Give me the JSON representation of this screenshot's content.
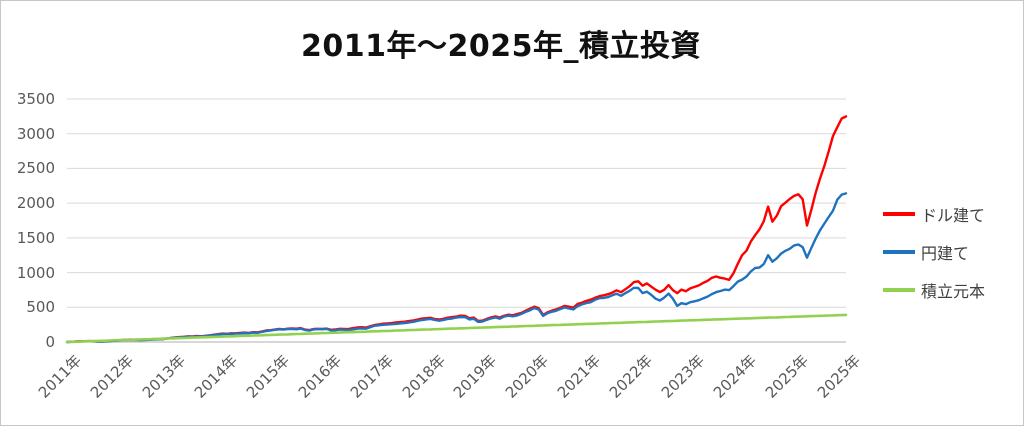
{
  "title": "2011年〜2025年_積立投資",
  "colors": {
    "dollar_series": "#FF0000",
    "yen_series": "#1F72BE",
    "principal_series": "#92D050",
    "gridline": "#D9D9D9",
    "axis_line": "#BFBFBF",
    "axis_text": "#595959",
    "title_text": "#111111"
  },
  "legend": [
    {
      "label": "ドル建て",
      "color": "#FF0000"
    },
    {
      "label": "円建て",
      "color": "#1F72BE"
    },
    {
      "label": "積立元本",
      "color": "#92D050"
    }
  ],
  "chart_data": {
    "type": "line",
    "title": "2011年〜2025年_積立投資",
    "xlabel": "",
    "ylabel": "",
    "ylim": [
      0,
      3500
    ],
    "grid": true,
    "legend_position": "right",
    "y_ticks": [
      0,
      500,
      1000,
      1500,
      2000,
      2500,
      3000,
      3500
    ],
    "x_tick_labels": [
      "2011年",
      "2012年",
      "2013年",
      "2014年",
      "2015年",
      "2016年",
      "2017年",
      "2018年",
      "2019年",
      "2020年",
      "2021年",
      "2022年",
      "2023年",
      "2024年",
      "2025年",
      "2025年"
    ],
    "points_per_x_tick": 12,
    "series": [
      {
        "name": "ドル建て",
        "color": "#FF0000",
        "values": [
          0,
          4,
          7,
          10,
          12,
          13,
          12,
          8,
          7,
          11,
          14,
          19,
          25,
          29,
          33,
          34,
          32,
          29,
          33,
          37,
          41,
          42,
          41,
          50,
          60,
          66,
          72,
          76,
          82,
          79,
          86,
          83,
          90,
          97,
          105,
          112,
          120,
          118,
          124,
          126,
          130,
          136,
          132,
          140,
          138,
          150,
          165,
          172,
          180,
          188,
          184,
          190,
          195,
          192,
          198,
          178,
          172,
          188,
          192,
          188,
          195,
          175,
          182,
          192,
          190,
          186,
          200,
          210,
          214,
          208,
          225,
          245,
          255,
          265,
          268,
          274,
          280,
          288,
          295,
          300,
          310,
          325,
          338,
          345,
          350,
          330,
          325,
          335,
          348,
          356,
          368,
          380,
          375,
          340,
          350,
          300,
          310,
          335,
          355,
          370,
          350,
          380,
          395,
          385,
          400,
          420,
          450,
          480,
          505,
          490,
          390,
          430,
          455,
          470,
          495,
          520,
          505,
          495,
          545,
          570,
          590,
          605,
          640,
          665,
          670,
          690,
          715,
          740,
          720,
          760,
          800,
          860,
          880,
          810,
          840,
          800,
          750,
          715,
          755,
          820,
          745,
          700,
          750,
          735,
          770,
          790,
          810,
          850,
          880,
          920,
          950,
          930,
          910,
          895,
          985,
          1120,
          1250,
          1320,
          1450,
          1530,
          1620,
          1750,
          1950,
          1740,
          1820,
          1950,
          2000,
          2060,
          2100,
          2140,
          2050,
          1670,
          1900,
          2150,
          2350,
          2550,
          2750,
          2950,
          3100,
          3200,
          3250
        ]
      },
      {
        "name": "円建て",
        "color": "#1F72BE",
        "values": [
          0,
          4,
          6,
          9,
          11,
          12,
          10,
          7,
          6,
          9,
          12,
          17,
          22,
          26,
          29,
          30,
          28,
          26,
          29,
          33,
          36,
          38,
          39,
          48,
          55,
          62,
          68,
          72,
          78,
          75,
          82,
          79,
          85,
          92,
          100,
          108,
          115,
          112,
          118,
          120,
          124,
          130,
          126,
          134,
          132,
          144,
          158,
          166,
          175,
          182,
          178,
          184,
          188,
          185,
          192,
          172,
          165,
          180,
          185,
          182,
          188,
          165,
          170,
          178,
          175,
          170,
          182,
          192,
          196,
          192,
          212,
          232,
          240,
          248,
          250,
          256,
          262,
          270,
          276,
          280,
          290,
          304,
          318,
          328,
          335,
          315,
          308,
          318,
          330,
          340,
          352,
          362,
          358,
          325,
          335,
          288,
          295,
          320,
          340,
          355,
          335,
          365,
          380,
          370,
          385,
          405,
          435,
          462,
          485,
          470,
          375,
          410,
          435,
          450,
          475,
          495,
          480,
          470,
          520,
          545,
          560,
          575,
          610,
          630,
          632,
          650,
          670,
          690,
          665,
          700,
          740,
          775,
          775,
          700,
          720,
          680,
          625,
          595,
          640,
          700,
          620,
          520,
          560,
          545,
          575,
          590,
          605,
          630,
          650,
          690,
          720,
          740,
          760,
          745,
          810,
          870,
          900,
          945,
          1020,
          1060,
          1070,
          1130,
          1250,
          1150,
          1200,
          1280,
          1320,
          1340,
          1385,
          1400,
          1370,
          1210,
          1350,
          1500,
          1600,
          1700,
          1800,
          1900,
          2050,
          2120,
          2140
        ]
      },
      {
        "name": "積立元本",
        "color": "#92D050",
        "values": [
          0,
          2,
          4,
          6,
          9,
          11,
          13,
          15,
          17,
          19,
          22,
          24,
          26,
          28,
          30,
          32,
          35,
          37,
          39,
          41,
          43,
          45,
          48,
          50,
          52,
          54,
          56,
          58,
          61,
          63,
          65,
          67,
          69,
          71,
          74,
          76,
          78,
          80,
          82,
          84,
          87,
          89,
          91,
          93,
          95,
          97,
          100,
          102,
          104,
          106,
          108,
          110,
          113,
          115,
          117,
          119,
          121,
          123,
          126,
          128,
          130,
          132,
          134,
          136,
          139,
          141,
          143,
          145,
          147,
          149,
          152,
          154,
          156,
          158,
          160,
          162,
          165,
          167,
          169,
          171,
          173,
          175,
          178,
          180,
          182,
          184,
          186,
          188,
          191,
          193,
          195,
          197,
          199,
          201,
          204,
          206,
          208,
          210,
          212,
          214,
          217,
          219,
          221,
          223,
          225,
          227,
          230,
          232,
          234,
          236,
          238,
          240,
          243,
          245,
          247,
          249,
          251,
          253,
          256,
          258,
          260,
          262,
          264,
          266,
          269,
          271,
          273,
          275,
          277,
          279,
          282,
          284,
          286,
          288,
          290,
          292,
          295,
          297,
          299,
          301,
          303,
          305,
          308,
          310,
          312,
          314,
          316,
          318,
          321,
          323,
          325,
          327,
          329,
          331,
          334,
          336,
          338,
          340,
          342,
          344,
          347,
          349,
          351,
          353,
          355,
          357,
          360,
          362,
          364,
          366,
          368,
          370,
          373,
          375,
          377,
          379,
          381,
          383,
          386,
          388,
          390
        ]
      }
    ]
  }
}
